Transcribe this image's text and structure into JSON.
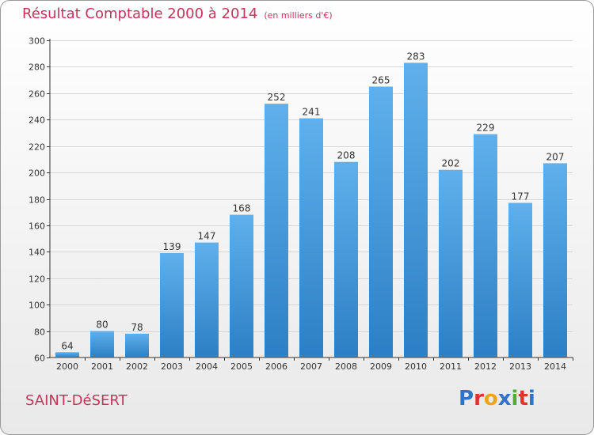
{
  "header": {
    "title": "Résultat Comptable 2000 à 2014",
    "unit": "(en milliers d'€)"
  },
  "footer": {
    "town": "SAINT-DéSERT",
    "logo_letters": [
      "P",
      "r",
      "o",
      "x",
      "i",
      "t",
      "i"
    ]
  },
  "colors": {
    "title": "#c3355a",
    "bar_top": "#5fb0ec",
    "bar_bottom": "#2c7fc4",
    "logo": [
      "#2f74c9",
      "#e2332b",
      "#f0a31c",
      "#2f74c9",
      "#58a93a",
      "#e2332b",
      "#2f74c9"
    ]
  },
  "chart_data": {
    "type": "bar",
    "title": "Résultat Comptable 2000 à 2014",
    "subtitle": "(en milliers d'€)",
    "xlabel": "",
    "ylabel": "",
    "categories": [
      "2000",
      "2001",
      "2002",
      "2003",
      "2004",
      "2005",
      "2006",
      "2007",
      "2008",
      "2009",
      "2010",
      "2011",
      "2012",
      "2013",
      "2014"
    ],
    "values": [
      64,
      80,
      78,
      139,
      147,
      168,
      252,
      241,
      208,
      265,
      283,
      202,
      229,
      177,
      207
    ],
    "ylim": [
      60,
      300
    ],
    "yticks": [
      60,
      80,
      100,
      120,
      140,
      160,
      180,
      200,
      220,
      240,
      260,
      280,
      300
    ],
    "grid": true,
    "data_labels": true
  }
}
